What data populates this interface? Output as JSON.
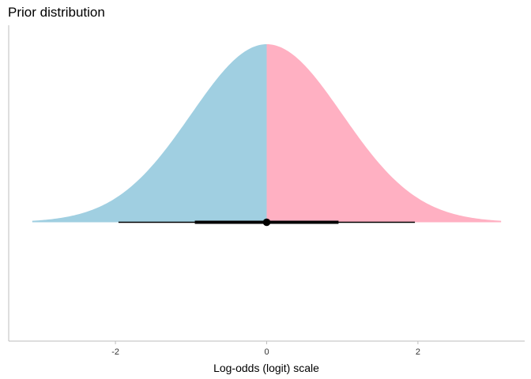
{
  "chart_data": {
    "type": "area",
    "title": "Prior distribution",
    "xlabel": "Log-odds (logit) scale",
    "ylabel": "",
    "xlim": [
      -3.1,
      3.1
    ],
    "x_ticks": [
      -2,
      0,
      2
    ],
    "x_tick_labels": [
      "-2",
      "0",
      "2"
    ],
    "distribution": {
      "family": "normal",
      "mean": 0,
      "sd": 1
    },
    "fill_regions": [
      {
        "from": -3.1,
        "to": 0,
        "color": "#a0cfe1"
      },
      {
        "from": 0,
        "to": 3.1,
        "color": "#ffb0c2"
      }
    ],
    "point_interval": {
      "point": 0,
      "inner_interval": [
        -0.95,
        0.95
      ],
      "outer_interval": [
        -1.96,
        1.96
      ],
      "color": "#000000"
    },
    "grid": false
  }
}
